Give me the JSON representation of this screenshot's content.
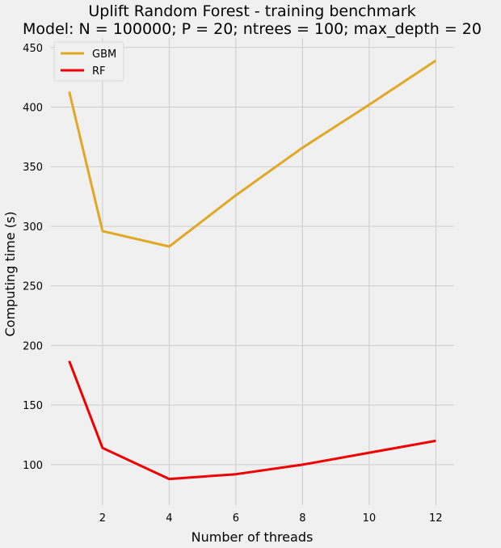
{
  "chart_data": {
    "type": "line",
    "title": "Uplift Random Forest - training benchmark",
    "subtitle": "Model: N = 100000; P = 20; ntrees = 100;  max_depth = 20",
    "xlabel": "Number of threads",
    "ylabel": "Computing time (s)",
    "x": [
      1,
      2,
      4,
      6,
      8,
      10,
      12
    ],
    "xticks": [
      2,
      4,
      6,
      8,
      10,
      12
    ],
    "yticks": [
      100,
      150,
      200,
      250,
      300,
      350,
      400,
      450
    ],
    "xlim": [
      0.45,
      12.55
    ],
    "ylim": [
      66,
      458
    ],
    "grid": true,
    "legend_position": "top-left",
    "series": [
      {
        "name": "GBM",
        "color": "#e0a825",
        "values": [
          413,
          296,
          283,
          326,
          366,
          402,
          439
        ]
      },
      {
        "name": "RF",
        "color": "#ee0000",
        "values": [
          187,
          114,
          88,
          92,
          100,
          110,
          120
        ]
      }
    ]
  }
}
